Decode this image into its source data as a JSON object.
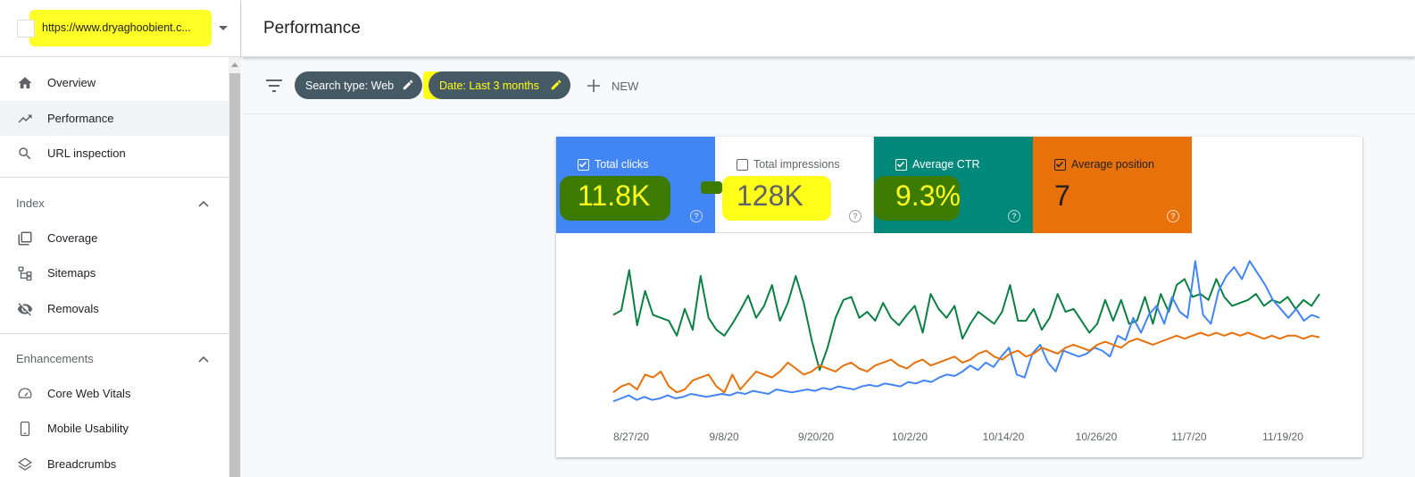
{
  "property": {
    "url": "https://www.dryaghoobient.c..."
  },
  "header": {
    "title": "Performance"
  },
  "sidebar": {
    "items_top": [
      {
        "label": "Overview",
        "icon": "home-icon"
      },
      {
        "label": "Performance",
        "icon": "trending-up-icon",
        "active": true
      },
      {
        "label": "URL inspection",
        "icon": "search-icon"
      }
    ],
    "index_section": "Index",
    "index_items": [
      {
        "label": "Coverage",
        "icon": "coverage-icon"
      },
      {
        "label": "Sitemaps",
        "icon": "sitemap-icon"
      },
      {
        "label": "Removals",
        "icon": "eye-off-icon"
      }
    ],
    "enhancements_section": "Enhancements",
    "enhancement_items": [
      {
        "label": "Core Web Vitals",
        "icon": "gauge-icon"
      },
      {
        "label": "Mobile Usability",
        "icon": "phone-icon"
      },
      {
        "label": "Breadcrumbs",
        "icon": "layers-icon"
      }
    ]
  },
  "filters": {
    "search_type": "Search type: Web",
    "date": "Date: Last 3 months",
    "new_label": "NEW"
  },
  "metrics": [
    {
      "label": "Total clicks",
      "value": "11.8K",
      "checked": true,
      "color": "#4285f4"
    },
    {
      "label": "Total impressions",
      "value": "128K",
      "checked": false,
      "color": "#ffffff"
    },
    {
      "label": "Average CTR",
      "value": "9.3%",
      "checked": true,
      "color": "#00897b"
    },
    {
      "label": "Average position",
      "value": "7",
      "checked": true,
      "color": "#e8710a"
    }
  ],
  "chart_data": {
    "type": "line",
    "x_ticks": [
      "8/27/20",
      "9/8/20",
      "9/20/20",
      "10/2/20",
      "10/14/20",
      "10/26/20",
      "11/7/20",
      "11/19/20"
    ],
    "series": [
      {
        "name": "Average CTR",
        "color": "#0b8043",
        "values": [
          0.62,
          0.65,
          0.92,
          0.55,
          0.78,
          0.62,
          0.6,
          0.58,
          0.48,
          0.66,
          0.52,
          0.88,
          0.6,
          0.52,
          0.48,
          0.56,
          0.65,
          0.75,
          0.6,
          0.68,
          0.82,
          0.58,
          0.7,
          0.88,
          0.7,
          0.45,
          0.25,
          0.4,
          0.6,
          0.72,
          0.74,
          0.6,
          0.64,
          0.58,
          0.7,
          0.6,
          0.55,
          0.62,
          0.68,
          0.5,
          0.76,
          0.66,
          0.6,
          0.68,
          0.46,
          0.56,
          0.64,
          0.6,
          0.56,
          0.64,
          0.82,
          0.58,
          0.58,
          0.66,
          0.52,
          0.6,
          0.76,
          0.64,
          0.66,
          0.58,
          0.5,
          0.56,
          0.72,
          0.58,
          0.72,
          0.56,
          0.58,
          0.74,
          0.56,
          0.76,
          0.64,
          0.82,
          0.86,
          0.74,
          0.76,
          0.72,
          0.86,
          0.74,
          0.68,
          0.7,
          0.72,
          0.76,
          0.68,
          0.72,
          0.7,
          0.74,
          0.66,
          0.72,
          0.68,
          0.76
        ]
      },
      {
        "name": "Total clicks",
        "color": "#4285f4",
        "values": [
          0.04,
          0.06,
          0.08,
          0.05,
          0.07,
          0.05,
          0.06,
          0.08,
          0.06,
          0.07,
          0.09,
          0.08,
          0.07,
          0.08,
          0.09,
          0.08,
          0.1,
          0.09,
          0.11,
          0.1,
          0.09,
          0.12,
          0.11,
          0.1,
          0.11,
          0.12,
          0.11,
          0.13,
          0.12,
          0.14,
          0.13,
          0.12,
          0.14,
          0.15,
          0.14,
          0.16,
          0.15,
          0.14,
          0.17,
          0.16,
          0.18,
          0.17,
          0.2,
          0.22,
          0.21,
          0.24,
          0.28,
          0.25,
          0.3,
          0.27,
          0.34,
          0.4,
          0.22,
          0.2,
          0.36,
          0.42,
          0.3,
          0.24,
          0.38,
          0.36,
          0.34,
          0.36,
          0.4,
          0.38,
          0.34,
          0.48,
          0.45,
          0.6,
          0.5,
          0.62,
          0.68,
          0.56,
          0.74,
          0.64,
          0.6,
          0.98,
          0.62,
          0.56,
          0.78,
          0.88,
          0.94,
          0.86,
          0.98,
          0.9,
          0.82,
          0.72,
          0.66,
          0.6,
          0.66,
          0.58,
          0.62,
          0.6
        ]
      },
      {
        "name": "Average position",
        "color": "#e8710a",
        "values": [
          0.1,
          0.14,
          0.16,
          0.12,
          0.22,
          0.2,
          0.24,
          0.14,
          0.1,
          0.12,
          0.18,
          0.2,
          0.22,
          0.14,
          0.1,
          0.22,
          0.12,
          0.18,
          0.24,
          0.22,
          0.2,
          0.24,
          0.3,
          0.26,
          0.22,
          0.24,
          0.28,
          0.26,
          0.24,
          0.28,
          0.3,
          0.26,
          0.24,
          0.28,
          0.3,
          0.32,
          0.28,
          0.26,
          0.3,
          0.32,
          0.28,
          0.3,
          0.32,
          0.34,
          0.3,
          0.32,
          0.36,
          0.38,
          0.34,
          0.32,
          0.36,
          0.38,
          0.34,
          0.36,
          0.4,
          0.38,
          0.36,
          0.4,
          0.42,
          0.4,
          0.38,
          0.42,
          0.44,
          0.42,
          0.4,
          0.44,
          0.46,
          0.44,
          0.42,
          0.44,
          0.46,
          0.48,
          0.46,
          0.48,
          0.5,
          0.48,
          0.5,
          0.48,
          0.5,
          0.48,
          0.5,
          0.48,
          0.46,
          0.48,
          0.46,
          0.48,
          0.48,
          0.46,
          0.48,
          0.47
        ]
      }
    ]
  }
}
